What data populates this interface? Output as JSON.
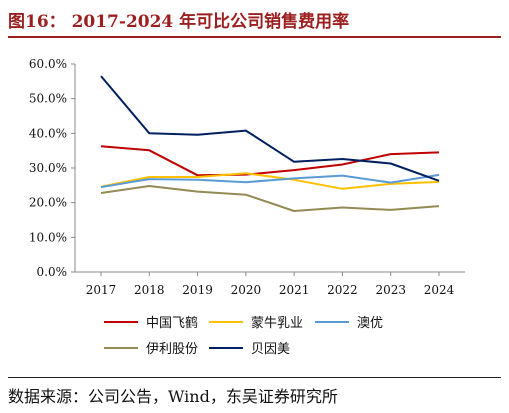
{
  "figure": {
    "title": "图16：  2017-2024 年可比公司销售费用率",
    "source": "数据来源：公司公告，Wind，东吴证券研究所"
  },
  "chart_data": {
    "type": "line",
    "title": "图16：  2017-2024 年可比公司销售费用率",
    "xlabel": "",
    "ylabel": "",
    "categories": [
      "2017",
      "2018",
      "2019",
      "2020",
      "2021",
      "2022",
      "2023",
      "2024"
    ],
    "y_ticks": [
      "0.0%",
      "10.0%",
      "20.0%",
      "30.0%",
      "40.0%",
      "50.0%",
      "60.0%"
    ],
    "ylim": [
      0,
      60
    ],
    "grid": false,
    "legend_position": "bottom",
    "series": [
      {
        "name": "中国飞鹤",
        "color": "#c00000",
        "values": [
          36.3,
          35.1,
          27.9,
          28.1,
          29.4,
          31.0,
          34.0,
          34.5
        ]
      },
      {
        "name": "蒙牛乳业",
        "color": "#ffc000",
        "values": [
          24.6,
          27.4,
          27.4,
          28.5,
          26.6,
          24.0,
          25.4,
          26.0
        ]
      },
      {
        "name": "澳优",
        "color": "#5b9bd5",
        "values": [
          24.5,
          26.8,
          26.6,
          25.9,
          27.0,
          27.8,
          25.8,
          28.0
        ]
      },
      {
        "name": "伊利股份",
        "color": "#948a54",
        "values": [
          22.8,
          24.8,
          23.2,
          22.3,
          17.6,
          18.6,
          17.9,
          19.0
        ]
      },
      {
        "name": "贝因美",
        "color": "#002060",
        "values": [
          56.5,
          40.0,
          39.6,
          40.8,
          31.8,
          32.6,
          31.3,
          26.3
        ]
      }
    ]
  }
}
